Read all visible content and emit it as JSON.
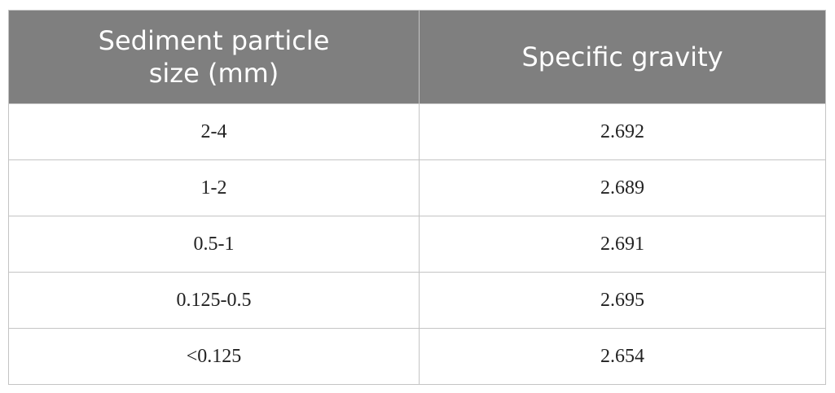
{
  "table": {
    "header": [
      "Sediment particle size (mm)",
      "Specific gravity"
    ],
    "rows": [
      [
        "2-4",
        "2.692"
      ],
      [
        "1-2",
        "2.689"
      ],
      [
        "0.5-1",
        "2.691"
      ],
      [
        "0.125-0.5",
        "2.695"
      ],
      [
        "<0.125",
        "2.654"
      ]
    ]
  }
}
